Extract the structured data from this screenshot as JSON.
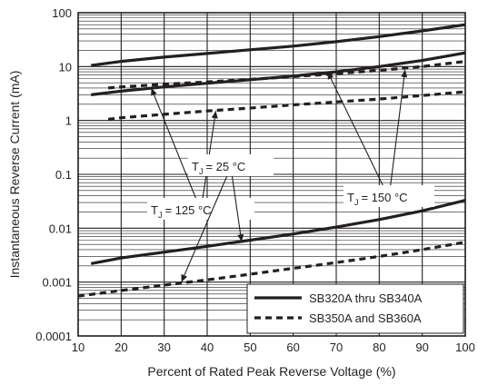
{
  "chart_data": {
    "type": "line",
    "xlabel": "Percent of Rated Peak Reverse Voltage (%)",
    "ylabel": "Instantaneous Reverse Current (mA)",
    "x_scale": "linear",
    "y_scale": "log",
    "xlim": [
      10,
      100
    ],
    "ylim": [
      0.0001,
      100
    ],
    "grid": true,
    "x_ticks": [
      "10",
      "20",
      "30",
      "40",
      "50",
      "60",
      "70",
      "80",
      "90",
      "100"
    ],
    "y_ticks": [
      "0.0001",
      "0.001",
      "0.01",
      "0.1",
      "1",
      "10",
      "100"
    ],
    "legend_position": "bottom-right",
    "legend": [
      {
        "label": "SB320A thru SB340A",
        "style": "solid"
      },
      {
        "label": "SB350A and SB360A",
        "style": "dashed"
      }
    ],
    "series": [
      {
        "group": "SB320A thru SB340A",
        "style": "solid",
        "temperature": "150",
        "x": [
          13,
          20,
          30,
          40,
          50,
          60,
          70,
          80,
          90,
          100
        ],
        "y": [
          10.5,
          12.5,
          15,
          17.5,
          20.5,
          24,
          29,
          36,
          46,
          60
        ]
      },
      {
        "group": "SB320A thru SB340A",
        "style": "solid",
        "temperature": "125",
        "x": [
          13,
          20,
          30,
          40,
          50,
          60,
          70,
          80,
          90,
          100
        ],
        "y": [
          3,
          3.5,
          4.2,
          4.9,
          5.7,
          6.7,
          8,
          10,
          13,
          18
        ]
      },
      {
        "group": "SB320A thru SB340A",
        "style": "solid",
        "temperature": "25",
        "x": [
          13,
          20,
          30,
          40,
          50,
          60,
          70,
          80,
          90,
          100
        ],
        "y": [
          0.0022,
          0.0028,
          0.0036,
          0.0046,
          0.006,
          0.0078,
          0.0105,
          0.0145,
          0.021,
          0.033
        ]
      },
      {
        "group": "SB350A and SB360A",
        "style": "dashed",
        "temperature": "150",
        "x": [
          17,
          20,
          30,
          40,
          50,
          60,
          70,
          80,
          90,
          100
        ],
        "y": [
          4,
          4.2,
          4.7,
          5.2,
          5.8,
          6.5,
          7.4,
          8.5,
          10,
          12.5
        ]
      },
      {
        "group": "SB350A and SB360A",
        "style": "dashed",
        "temperature": "125",
        "x": [
          17,
          20,
          30,
          40,
          50,
          60,
          70,
          80,
          90,
          100
        ],
        "y": [
          1.05,
          1.12,
          1.3,
          1.5,
          1.7,
          1.95,
          2.2,
          2.5,
          2.9,
          3.4
        ]
      },
      {
        "group": "SB350A and SB360A",
        "style": "dashed",
        "temperature": "25",
        "x": [
          10,
          20,
          30,
          40,
          50,
          60,
          70,
          80,
          90,
          100
        ],
        "y": [
          0.00055,
          0.0007,
          0.00088,
          0.0011,
          0.0014,
          0.0018,
          0.0023,
          0.003,
          0.004,
          0.0055
        ]
      }
    ],
    "annotations": [
      {
        "id": "tj150",
        "label": "T",
        "subscript": "J",
        "value": "= 150 °C",
        "targets": [
          {
            "x": 68,
            "y": 8.0
          },
          {
            "x": 86,
            "y": 8.7
          }
        ]
      },
      {
        "id": "tj125",
        "label": "T",
        "subscript": "J",
        "value": "= 125 °C",
        "targets": [
          {
            "x": 27,
            "y": 4.0
          },
          {
            "x": 42,
            "y": 1.5
          }
        ]
      },
      {
        "id": "tj25",
        "label": "T",
        "subscript": "J",
        "value": "= 25 °C",
        "targets": [
          {
            "x": 34,
            "y": 0.001
          },
          {
            "x": 48,
            "y": 0.0056
          }
        ]
      }
    ]
  }
}
